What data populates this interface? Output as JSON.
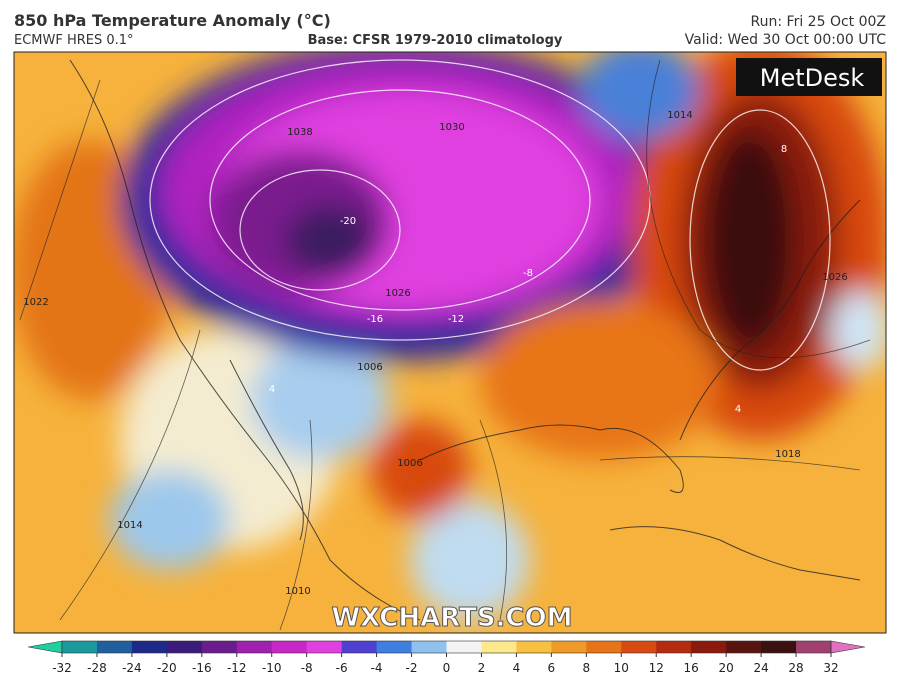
{
  "header": {
    "title": "850 hPa Temperature Anomaly (°C)",
    "model": "ECMWF HRES 0.1°",
    "base": "Base: CFSR 1979-2010 climatology",
    "run": "Run: Fri 25 Oct 00Z",
    "valid": "Valid: Wed 30 Oct 00:00 UTC"
  },
  "logo": "MetDesk",
  "watermark": "WXCHARTS.COM",
  "map_labels": [
    "1038",
    "-20",
    "1026",
    "-16",
    "-12",
    "-8",
    "4",
    "1006",
    "1014",
    "1018",
    "1022",
    "1010",
    "1030",
    "8",
    "1026",
    "4",
    "1014",
    "1006"
  ],
  "colorbar": {
    "ticks": [
      -32,
      -28,
      -24,
      -20,
      -16,
      -12,
      -10,
      -8,
      -6,
      -4,
      -2,
      0,
      2,
      4,
      6,
      8,
      10,
      12,
      16,
      20,
      24,
      28,
      32
    ],
    "colors": [
      "#1fcf9c",
      "#1a9a9e",
      "#205f9e",
      "#1d2a8a",
      "#3a1a7a",
      "#6a1b8e",
      "#a020b0",
      "#c828c8",
      "#e040e0",
      "#5040d0",
      "#3f7fe0",
      "#8fc0ee",
      "#f4f4f4",
      "#fde98a",
      "#f8c040",
      "#f09a28",
      "#e87418",
      "#d84a10",
      "#b52a10",
      "#8a1a0c",
      "#5a1410",
      "#3a1010",
      "#a04070",
      "#e070c0"
    ]
  }
}
